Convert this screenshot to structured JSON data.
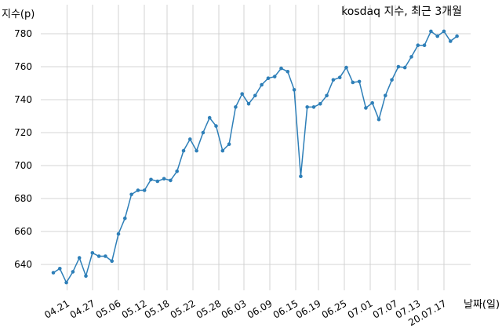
{
  "chart_data": {
    "type": "line",
    "title": "kosdaq 지수, 최근 3개월",
    "ylabel": "지수(p)",
    "xlabel": "날짜(일)",
    "ylim": [
      620,
      790
    ],
    "yticks": [
      640,
      660,
      680,
      700,
      720,
      740,
      760,
      780
    ],
    "grid": true,
    "x_tick_labels": [
      "04.21",
      "04.27",
      "05.06",
      "05.12",
      "05.18",
      "05.22",
      "05.28",
      "06.03",
      "06.09",
      "06.15",
      "06.19",
      "06.25",
      "07.01",
      "07.07",
      "07.13",
      "20.07.17"
    ],
    "series": [
      {
        "color": "#2e7fb8",
        "values": [
          635,
          637.5,
          629,
          635.5,
          644,
          633,
          647,
          645,
          645,
          642,
          658.5,
          668,
          682.5,
          685,
          685,
          691.5,
          690.5,
          692,
          691,
          696.5,
          709,
          716,
          709,
          720,
          729,
          724,
          709,
          713,
          735.5,
          743.5,
          737.5,
          742.5,
          749,
          753,
          754,
          759,
          757,
          746,
          693.5,
          735.5,
          735.5,
          737.5,
          742.5,
          752,
          753.5,
          759.5,
          750.5,
          751,
          735,
          738,
          728,
          742.5,
          752,
          760,
          759.5,
          766,
          773,
          773,
          781.5,
          778.5,
          781.5,
          775.5,
          778.5
        ]
      }
    ]
  }
}
